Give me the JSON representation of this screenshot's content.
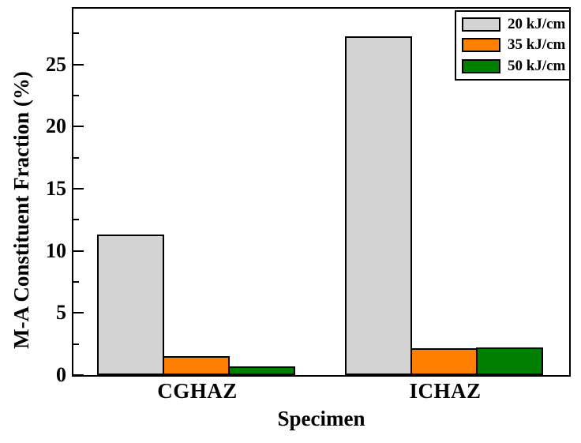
{
  "figure": {
    "background_color": "#FFFFFF",
    "frame_color": "#000000"
  },
  "chart_data": {
    "type": "bar",
    "title": "",
    "xlabel": "Specimen",
    "ylabel": "M-A Constituent Fraction (%)",
    "categories": [
      "CGHAZ",
      "ICHAZ"
    ],
    "series": [
      {
        "name": "20 kJ/cm",
        "color": "#D3D3D3",
        "values": [
          11.3,
          27.3
        ]
      },
      {
        "name": "35 kJ/cm",
        "color": "#FF8000",
        "values": [
          1.55,
          2.15
        ]
      },
      {
        "name": "50 kJ/cm",
        "color": "#008000",
        "values": [
          0.7,
          2.25
        ]
      }
    ],
    "ylim": [
      0,
      29.5
    ],
    "yticks_major": [
      0,
      5,
      10,
      15,
      20,
      25
    ],
    "yticks_minor": [
      2.5,
      7.5,
      12.5,
      17.5,
      22.5,
      27.5
    ],
    "grid": false,
    "legend_position": "top-right",
    "bar_edge_color": "#000000"
  }
}
